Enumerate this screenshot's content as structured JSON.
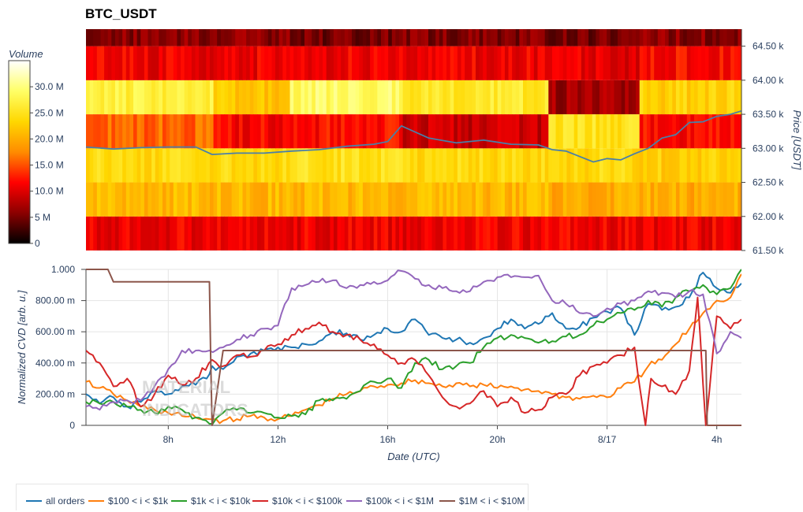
{
  "title": "BTC_USDT",
  "watermark": [
    "MATERIAL",
    "INDICATORS"
  ],
  "chart_data": [
    {
      "type": "heatmap",
      "title": "BTC_USDT",
      "ylabel": "Price [USDT]",
      "ylim": [
        61500,
        64750
      ],
      "y_ticks": [
        61500,
        62000,
        62500,
        63000,
        63500,
        64000,
        64500
      ],
      "y_tick_labels": [
        "61.50 k",
        "62.00 k",
        "62.50 k",
        "63.00 k",
        "63.50 k",
        "64.00 k",
        "64.50 k"
      ],
      "price_bins": [
        61500,
        62000,
        62500,
        63000,
        63500,
        64000,
        64500
      ],
      "colorbar": {
        "title": "Volume",
        "range": [
          0,
          35000000
        ],
        "ticks": [
          0,
          5000000,
          10000000,
          15000000,
          20000000,
          25000000,
          30000000
        ],
        "tick_labels": [
          "0",
          "5 M",
          "10.0 M",
          "15.0 M",
          "20.0 M",
          "25.0 M",
          "30.0 M"
        ],
        "colors": [
          "#000000",
          "#8b0000",
          "#ff0000",
          "#ff8c00",
          "#ffd700",
          "#ffff66",
          "#ffffff"
        ]
      },
      "volume_profile": [
        {
          "time_from_h": 5.0,
          "time_to_h": 9.6,
          "volumes_by_bin": [
            11000000,
            21000000,
            24000000,
            16000000,
            27000000,
            11000000,
            6000000
          ]
        },
        {
          "time_from_h": 9.6,
          "time_to_h": 12.5,
          "volumes_by_bin": [
            11000000,
            21000000,
            24000000,
            11500000,
            22000000,
            11000000,
            6000000
          ]
        },
        {
          "time_from_h": 12.5,
          "time_to_h": 16.5,
          "volumes_by_bin": [
            11000000,
            21000000,
            25000000,
            12000000,
            29000000,
            11000000,
            5000000
          ]
        },
        {
          "time_from_h": 16.5,
          "time_to_h": 21.9,
          "volumes_by_bin": [
            11000000,
            21000000,
            24000000,
            9000000,
            26000000,
            11000000,
            5500000
          ]
        },
        {
          "time_from_h": 21.9,
          "time_to_h": 25.2,
          "volumes_by_bin": [
            11000000,
            20000000,
            24000000,
            25000000,
            7000000,
            10500000,
            5000000
          ]
        },
        {
          "time_from_h": 25.2,
          "time_to_h": 28.9,
          "volumes_by_bin": [
            11000000,
            20000000,
            23000000,
            12000000,
            23000000,
            12000000,
            6000000
          ]
        }
      ],
      "price_series": {
        "name": "Price",
        "color": "#4a7fa8",
        "x_hours": [
          5.0,
          6.0,
          7.0,
          8.0,
          9.0,
          9.6,
          10.5,
          11.5,
          12.5,
          13.5,
          14.5,
          15.5,
          16.0,
          16.5,
          17.5,
          18.5,
          19.5,
          20.5,
          21.5,
          22.0,
          22.5,
          23.0,
          23.5,
          24.0,
          24.5,
          25.0,
          25.5,
          26.0,
          26.5,
          27.0,
          27.5,
          28.0,
          28.5,
          28.9
        ],
        "y": [
          63020,
          62990,
          63010,
          63020,
          63020,
          62910,
          62930,
          62930,
          62960,
          62980,
          63030,
          63060,
          63100,
          63330,
          63150,
          63080,
          63120,
          63060,
          63050,
          62980,
          62960,
          62880,
          62800,
          62850,
          62830,
          62920,
          63000,
          63150,
          63200,
          63380,
          63390,
          63470,
          63500,
          63550
        ]
      }
    },
    {
      "type": "line",
      "xlabel": "Date (UTC)",
      "ylabel": "Normalized CVD [arb. u.]",
      "xlim_hours": [
        5.0,
        28.9
      ],
      "x_ticks_hours": [
        8,
        12,
        16,
        20,
        24,
        28
      ],
      "x_tick_labels": [
        "8h",
        "12h",
        "16h",
        "20h",
        "8/17",
        "4h"
      ],
      "ylim": [
        0,
        1.0
      ],
      "y_ticks": [
        0,
        0.2,
        0.4,
        0.6,
        0.8,
        1.0
      ],
      "y_tick_labels": [
        "0",
        "200.00 m",
        "400.00 m",
        "600.00 m",
        "800.00 m",
        "1.000"
      ],
      "grid": true,
      "legend_position": "bottom",
      "series": [
        {
          "name": "all orders",
          "color": "#1f77b4",
          "x": [
            5.0,
            5.5,
            6.0,
            6.5,
            7.0,
            7.5,
            8.0,
            8.5,
            9.0,
            9.4,
            9.6,
            10.0,
            10.5,
            11.0,
            11.5,
            12.0,
            12.5,
            13.0,
            13.5,
            14.0,
            14.5,
            15.0,
            15.5,
            16.0,
            16.5,
            17.0,
            17.5,
            18.0,
            18.5,
            19.0,
            19.5,
            20.0,
            20.5,
            21.0,
            21.5,
            22.0,
            22.5,
            23.0,
            23.5,
            24.0,
            24.5,
            25.0,
            25.5,
            26.0,
            26.5,
            27.0,
            27.5,
            28.0,
            28.5,
            28.9
          ],
          "y": [
            0.2,
            0.14,
            0.18,
            0.12,
            0.15,
            0.22,
            0.2,
            0.25,
            0.26,
            0.3,
            0.38,
            0.36,
            0.44,
            0.46,
            0.48,
            0.5,
            0.5,
            0.52,
            0.54,
            0.6,
            0.59,
            0.55,
            0.58,
            0.62,
            0.6,
            0.68,
            0.58,
            0.56,
            0.55,
            0.53,
            0.56,
            0.62,
            0.68,
            0.62,
            0.65,
            0.72,
            0.62,
            0.63,
            0.69,
            0.73,
            0.75,
            0.58,
            0.78,
            0.74,
            0.76,
            0.82,
            0.98,
            0.88,
            0.85,
            0.91
          ]
        },
        {
          "name": "$100 < i < $1k",
          "color": "#ff7f0e",
          "x": [
            5.0,
            5.5,
            6.0,
            6.5,
            7.0,
            7.5,
            8.0,
            8.5,
            9.0,
            9.5,
            10.0,
            10.5,
            11.0,
            11.5,
            12.0,
            12.5,
            13.0,
            13.5,
            14.0,
            14.5,
            15.0,
            15.5,
            16.0,
            16.5,
            17.0,
            17.5,
            18.0,
            18.5,
            19.0,
            19.5,
            20.0,
            20.5,
            21.0,
            21.5,
            22.0,
            22.5,
            23.0,
            23.5,
            24.0,
            24.5,
            25.0,
            25.5,
            26.0,
            26.5,
            27.0,
            27.5,
            28.0,
            28.5,
            28.9
          ],
          "y": [
            0.28,
            0.24,
            0.2,
            0.16,
            0.12,
            0.1,
            0.08,
            0.06,
            0.05,
            0.04,
            0.03,
            0.04,
            0.06,
            0.05,
            0.04,
            0.06,
            0.1,
            0.13,
            0.17,
            0.2,
            0.22,
            0.25,
            0.26,
            0.27,
            0.29,
            0.27,
            0.25,
            0.27,
            0.25,
            0.26,
            0.24,
            0.25,
            0.23,
            0.22,
            0.2,
            0.18,
            0.17,
            0.19,
            0.18,
            0.24,
            0.28,
            0.38,
            0.42,
            0.52,
            0.62,
            0.72,
            0.8,
            0.82,
            0.97
          ]
        },
        {
          "name": "$1k < i < $10k",
          "color": "#2ca02c",
          "x": [
            5.0,
            5.5,
            6.0,
            6.5,
            7.0,
            7.5,
            8.0,
            8.5,
            9.0,
            9.5,
            10.0,
            10.5,
            11.0,
            11.5,
            12.0,
            12.5,
            13.0,
            13.5,
            14.0,
            14.5,
            15.0,
            15.5,
            16.0,
            16.5,
            17.0,
            17.5,
            18.0,
            18.5,
            19.0,
            19.5,
            20.0,
            20.5,
            21.0,
            21.5,
            22.0,
            22.5,
            23.0,
            23.5,
            24.0,
            24.5,
            25.0,
            25.5,
            26.0,
            26.5,
            27.0,
            27.5,
            28.0,
            28.5,
            28.9
          ],
          "y": [
            0.15,
            0.14,
            0.15,
            0.12,
            0.1,
            0.08,
            0.12,
            0.1,
            0.05,
            0.01,
            0.08,
            0.1,
            0.08,
            0.08,
            0.05,
            0.06,
            0.07,
            0.16,
            0.16,
            0.17,
            0.22,
            0.28,
            0.3,
            0.24,
            0.4,
            0.42,
            0.36,
            0.38,
            0.4,
            0.5,
            0.56,
            0.58,
            0.56,
            0.53,
            0.54,
            0.57,
            0.58,
            0.64,
            0.68,
            0.72,
            0.74,
            0.8,
            0.76,
            0.82,
            0.86,
            0.9,
            0.84,
            0.88,
            1.0
          ]
        },
        {
          "name": "$10k < i < $100k",
          "color": "#d62728",
          "x": [
            5.0,
            5.5,
            6.0,
            6.5,
            7.0,
            7.5,
            8.0,
            8.5,
            9.0,
            9.6,
            10.0,
            10.5,
            11.0,
            11.5,
            12.0,
            12.5,
            13.0,
            13.5,
            14.0,
            14.5,
            15.0,
            15.5,
            16.0,
            16.5,
            17.0,
            17.5,
            18.0,
            18.5,
            19.0,
            19.5,
            20.0,
            20.5,
            21.0,
            21.5,
            22.0,
            22.5,
            23.0,
            23.5,
            24.0,
            24.5,
            25.0,
            25.4,
            25.6,
            26.0,
            26.5,
            27.0,
            27.3,
            27.6,
            28.0,
            28.5,
            28.9
          ],
          "y": [
            0.48,
            0.4,
            0.25,
            0.3,
            0.12,
            0.2,
            0.32,
            0.26,
            0.3,
            0.42,
            0.38,
            0.45,
            0.44,
            0.48,
            0.52,
            0.58,
            0.62,
            0.66,
            0.6,
            0.58,
            0.55,
            0.52,
            0.45,
            0.4,
            0.42,
            0.32,
            0.18,
            0.12,
            0.14,
            0.22,
            0.12,
            0.18,
            0.08,
            0.1,
            0.18,
            0.2,
            0.32,
            0.38,
            0.4,
            0.45,
            0.5,
            0.0,
            0.3,
            0.25,
            0.2,
            0.35,
            0.82,
            0.0,
            0.7,
            0.62,
            0.68
          ]
        },
        {
          "name": "$100k < i < $1M",
          "color": "#9467bd",
          "x": [
            5.0,
            5.5,
            6.0,
            6.5,
            7.0,
            7.5,
            8.0,
            8.5,
            9.0,
            9.5,
            10.0,
            10.5,
            11.0,
            11.5,
            12.0,
            12.5,
            13.0,
            13.5,
            14.0,
            14.5,
            15.0,
            15.5,
            16.0,
            16.5,
            17.0,
            17.5,
            18.0,
            18.5,
            19.0,
            19.5,
            20.0,
            20.5,
            21.0,
            21.5,
            22.0,
            22.5,
            23.0,
            23.5,
            24.0,
            24.5,
            25.0,
            25.5,
            26.0,
            26.5,
            27.0,
            27.5,
            28.0,
            28.5,
            28.9
          ],
          "y": [
            0.12,
            0.1,
            0.15,
            0.16,
            0.16,
            0.25,
            0.36,
            0.48,
            0.48,
            0.48,
            0.5,
            0.55,
            0.58,
            0.62,
            0.64,
            0.88,
            0.9,
            0.92,
            0.93,
            0.88,
            0.9,
            0.92,
            0.93,
            0.99,
            0.94,
            0.9,
            0.88,
            0.86,
            0.86,
            0.92,
            0.95,
            0.95,
            0.95,
            0.96,
            0.8,
            0.78,
            0.72,
            0.7,
            0.75,
            0.78,
            0.8,
            0.86,
            0.85,
            0.82,
            0.86,
            0.84,
            0.46,
            0.6,
            0.56
          ]
        },
        {
          "name": "$1M < i < $10M",
          "color": "#8c564b",
          "x": [
            5.0,
            5.8,
            6.0,
            8.0,
            9.5,
            9.55,
            9.6,
            10.0,
            12.0,
            16.0,
            20.0,
            24.0,
            27.5,
            27.6,
            27.65,
            28.9
          ],
          "y": [
            1.0,
            1.0,
            0.92,
            0.92,
            0.92,
            0.4,
            0.0,
            0.48,
            0.48,
            0.48,
            0.48,
            0.48,
            0.48,
            0.48,
            0.0,
            0.0
          ]
        }
      ]
    }
  ]
}
